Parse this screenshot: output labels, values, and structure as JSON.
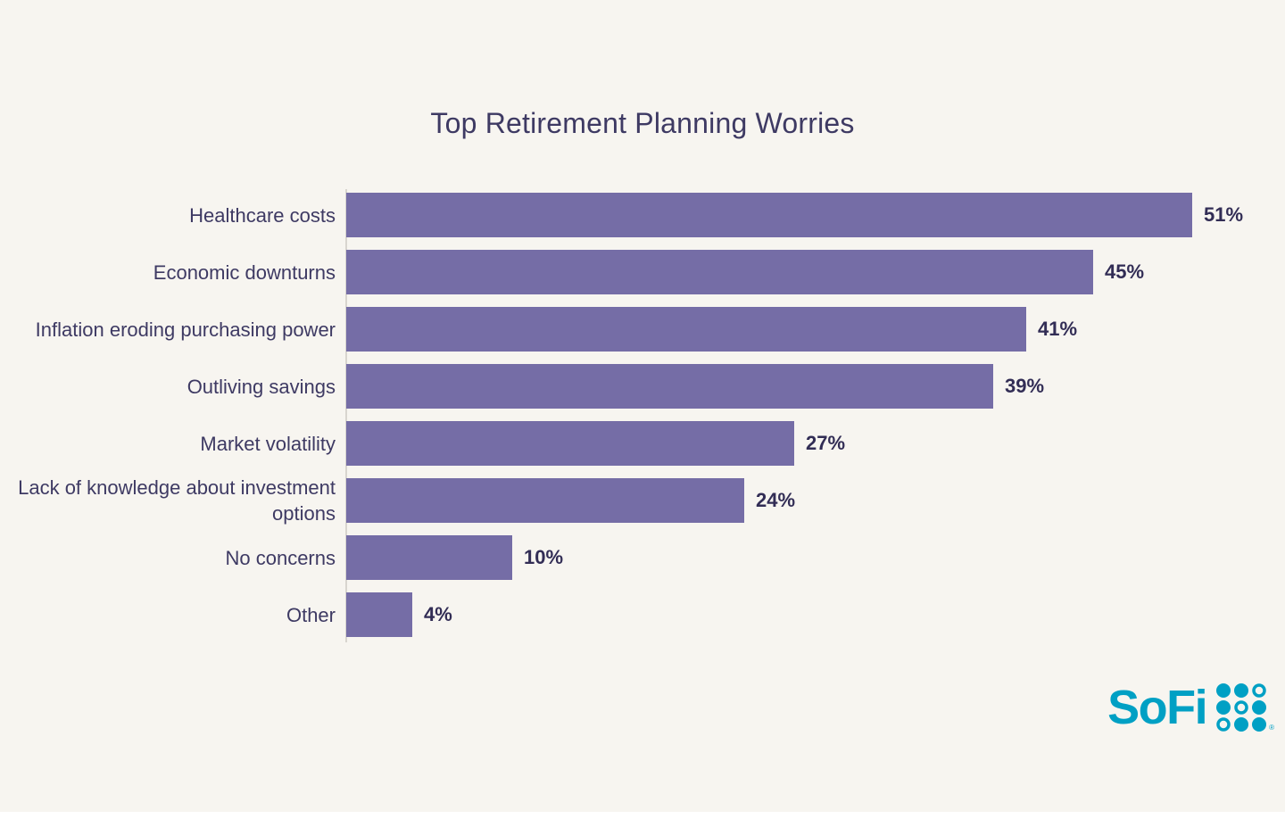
{
  "page": {
    "background_color": "#F7F5F0",
    "bottom_strip_color": "#FFFFFF"
  },
  "chart_data": {
    "type": "bar",
    "orientation": "horizontal",
    "title": "Top Retirement Planning Worries",
    "categories": [
      "Healthcare costs",
      "Economic downturns",
      "Inflation eroding purchasing power",
      "Outliving savings",
      "Market volatility",
      "Lack of knowledge about investment options",
      "No concerns",
      "Other"
    ],
    "values": [
      51,
      45,
      41,
      39,
      27,
      24,
      10,
      4
    ],
    "value_labels": [
      "51%",
      "45%",
      "41%",
      "39%",
      "27%",
      "24%",
      "10%",
      "4%"
    ],
    "xlabel": "",
    "ylabel": "",
    "xlim": [
      0,
      54.6
    ],
    "grid": false,
    "legend": false,
    "bar_color": "#756DA6",
    "title_color": "#3E3A63",
    "category_label_color": "#3E3A63",
    "value_label_color": "#322D55",
    "axis_line_color": "#D8D5CF"
  },
  "branding": {
    "logo_text": "SoFi",
    "logo_color": "#00A0C4",
    "registered_mark": "®",
    "dot_grid": [
      [
        1,
        1,
        0
      ],
      [
        1,
        0,
        1
      ],
      [
        0,
        1,
        1
      ]
    ]
  }
}
